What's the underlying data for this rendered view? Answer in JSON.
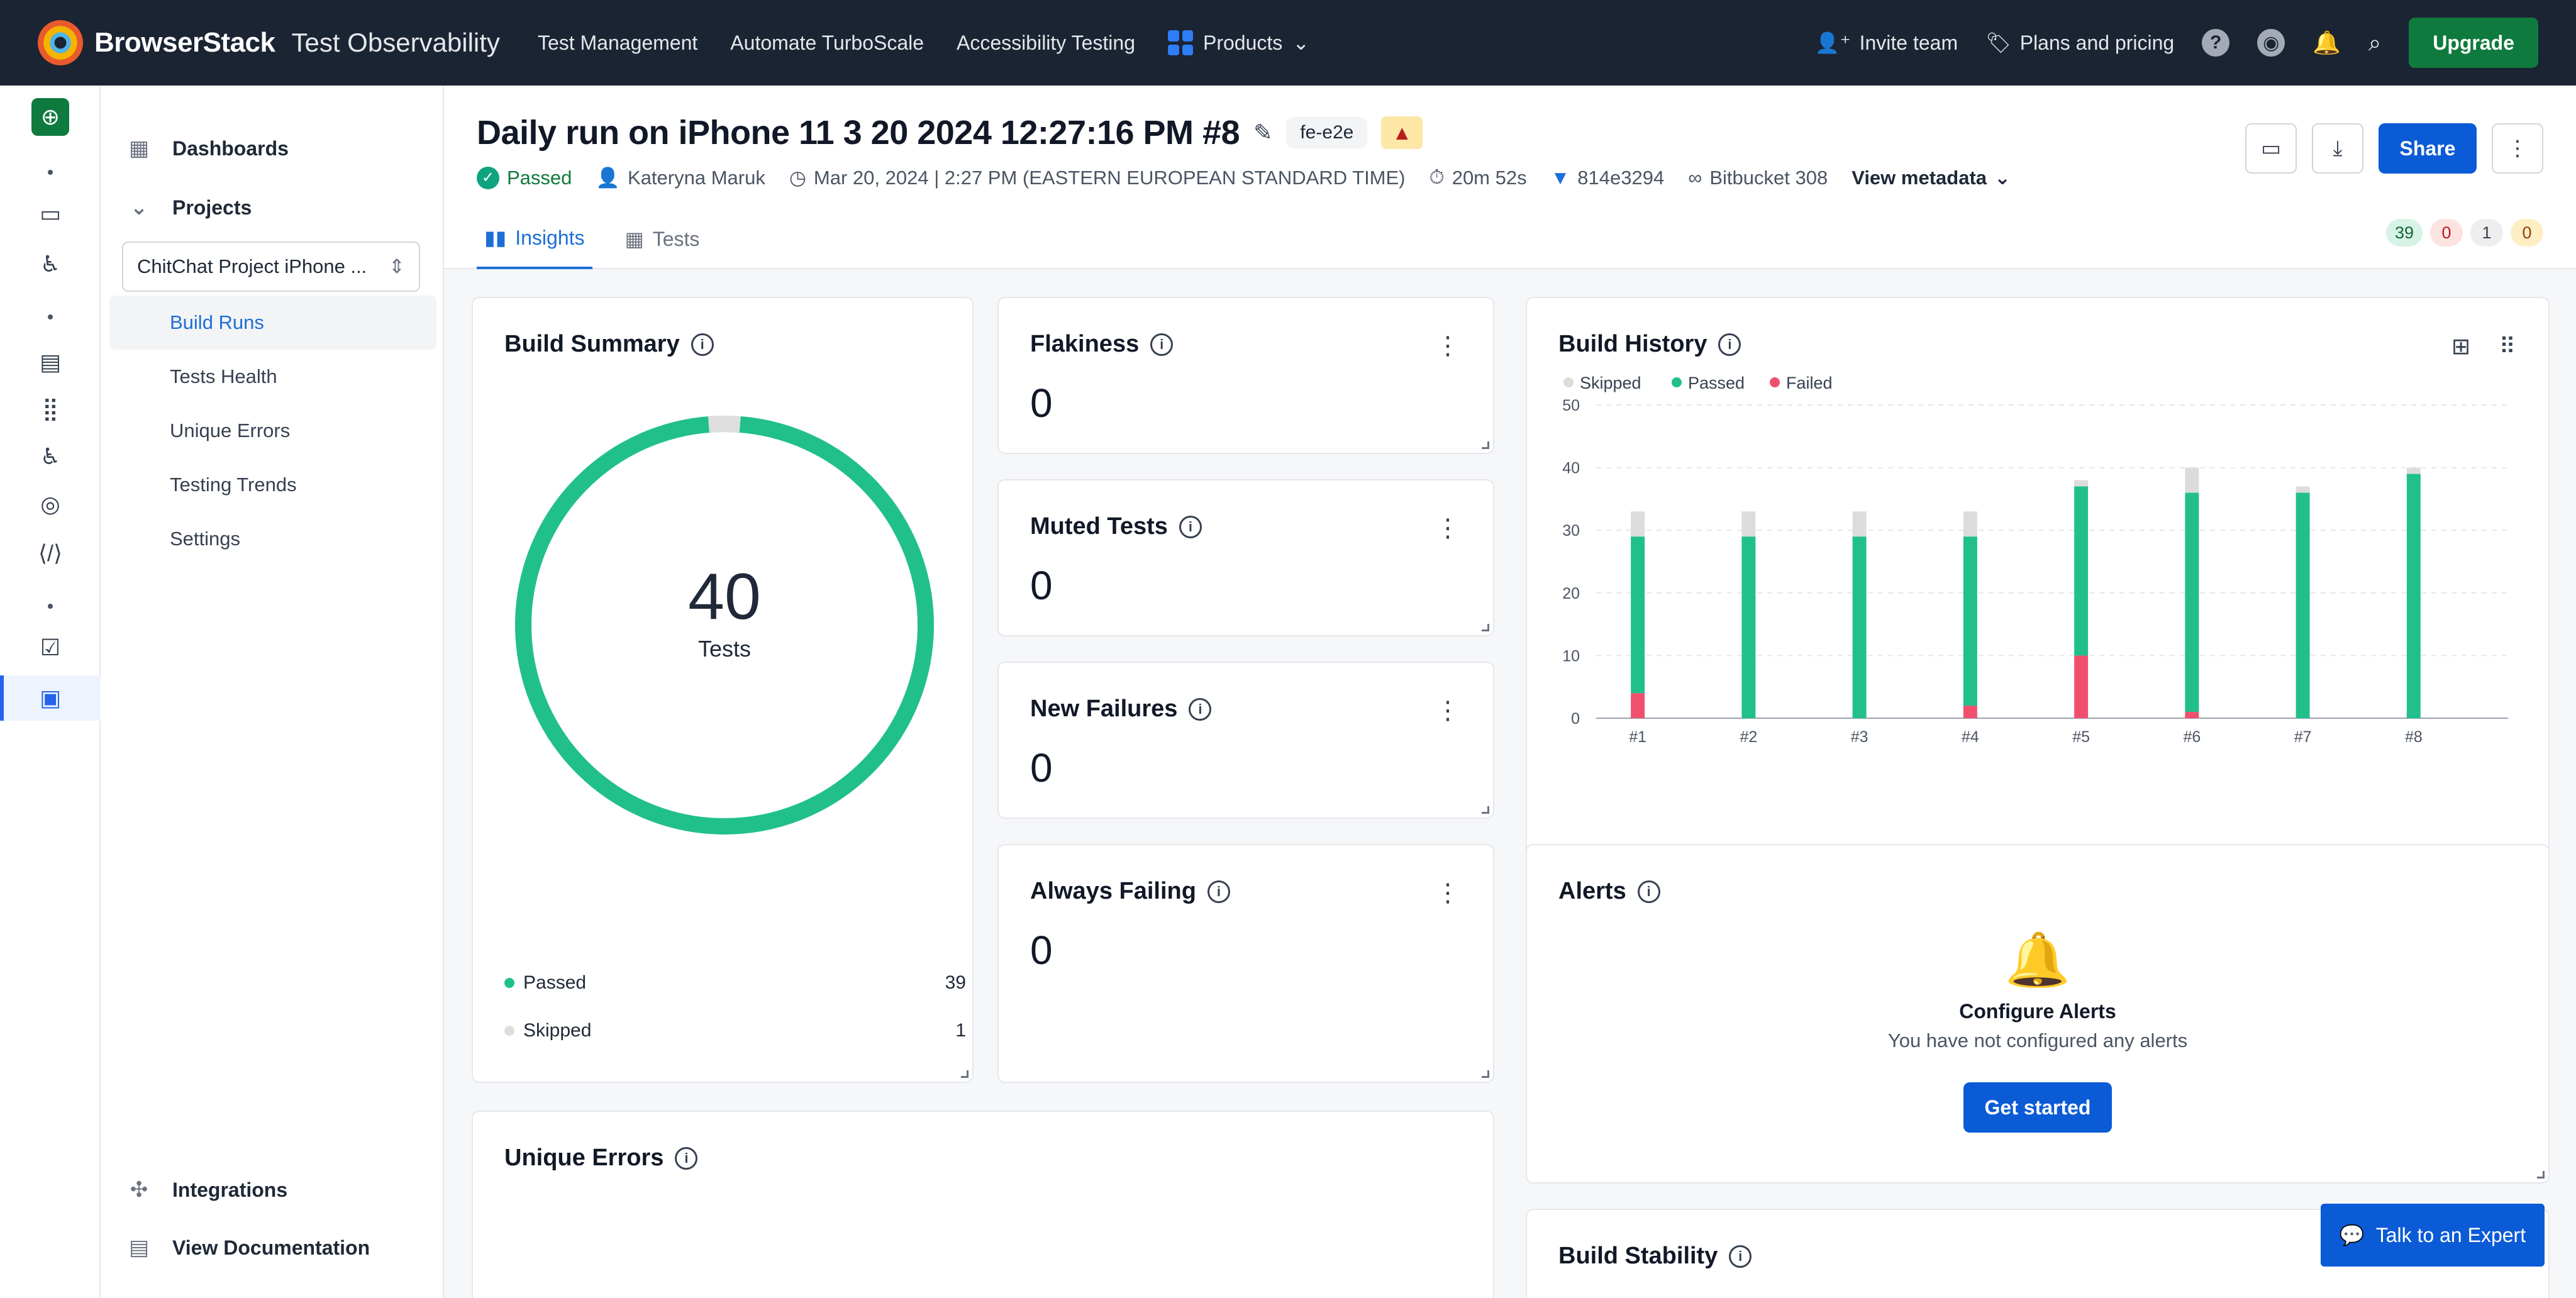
{
  "topbar": {
    "brand": "BrowserStack",
    "product": "Test Observability",
    "nav": [
      "Test Management",
      "Automate TurboScale",
      "Accessibility Testing"
    ],
    "products_label": "Products",
    "invite_label": "Invite team",
    "pricing_label": "Plans and pricing",
    "upgrade_label": "Upgrade"
  },
  "sidebar": {
    "dashboards_label": "Dashboards",
    "projects_label": "Projects",
    "project_select": "ChitChat Project iPhone ...",
    "items": [
      {
        "label": "Build Runs",
        "active": true
      },
      {
        "label": "Tests Health"
      },
      {
        "label": "Unique Errors"
      },
      {
        "label": "Testing Trends"
      },
      {
        "label": "Settings"
      }
    ],
    "integrations_label": "Integrations",
    "docs_label": "View Documentation"
  },
  "header": {
    "title": "Daily run on iPhone 11 3 20 2024 12:27:16 PM #8",
    "tag": "fe-e2e",
    "status": "Passed",
    "author": "Kateryna Maruk",
    "date": "Mar 20, 2024 | 2:27 PM (EASTERN EUROPEAN STANDARD TIME)",
    "duration": "20m 52s",
    "commit": "814e3294",
    "bitbucket": "Bitbucket 308",
    "view_metadata": "View metadata",
    "share_label": "Share",
    "tabs": [
      "Insights",
      "Tests"
    ],
    "counts": [
      "39",
      "0",
      "1",
      "0"
    ],
    "colors": {
      "passed": "#d7f3e6",
      "failed": "#fde2e2",
      "skipped": "#eeeeee",
      "flaky": "#fdeec4"
    }
  },
  "build_summary": {
    "title": "Build Summary",
    "total": "40",
    "total_label": "Tests",
    "legend": [
      {
        "label": "Passed",
        "value": "39",
        "color": "#21c08b"
      },
      {
        "label": "Skipped",
        "value": "1",
        "color": "#dedede"
      }
    ]
  },
  "metrics": [
    {
      "title": "Flakiness",
      "value": "0"
    },
    {
      "title": "Muted Tests",
      "value": "0"
    },
    {
      "title": "New Failures",
      "value": "0"
    },
    {
      "title": "Always Failing",
      "value": "0"
    }
  ],
  "unique_errors": {
    "title": "Unique Errors"
  },
  "alerts": {
    "title": "Alerts",
    "heading": "Configure Alerts",
    "subtext": "You have not configured any alerts",
    "button": "Get started"
  },
  "build_stability": {
    "title": "Build Stability"
  },
  "expert_button": "Talk to an Expert",
  "chart_data": {
    "type": "bar",
    "title": "Build History",
    "stacked": true,
    "categories": [
      "#1",
      "#2",
      "#3",
      "#4",
      "#5",
      "#6",
      "#7",
      "#8"
    ],
    "series": [
      {
        "name": "Failed",
        "color": "#f0506e",
        "values": [
          4,
          0,
          0,
          2,
          10,
          1,
          0,
          0
        ]
      },
      {
        "name": "Passed",
        "color": "#21c08b",
        "values": [
          25,
          29,
          29,
          27,
          27,
          35,
          36,
          39
        ]
      },
      {
        "name": "Skipped",
        "color": "#dcdcdc",
        "values": [
          4,
          4,
          4,
          4,
          1,
          4,
          1,
          1
        ]
      }
    ],
    "ylim": [
      0,
      50
    ],
    "yticks": [
      "0",
      "10",
      "20",
      "30",
      "40",
      "50"
    ],
    "legend_order": [
      "Skipped",
      "Passed",
      "Failed"
    ],
    "legend_position": "top-left",
    "grid": true
  }
}
